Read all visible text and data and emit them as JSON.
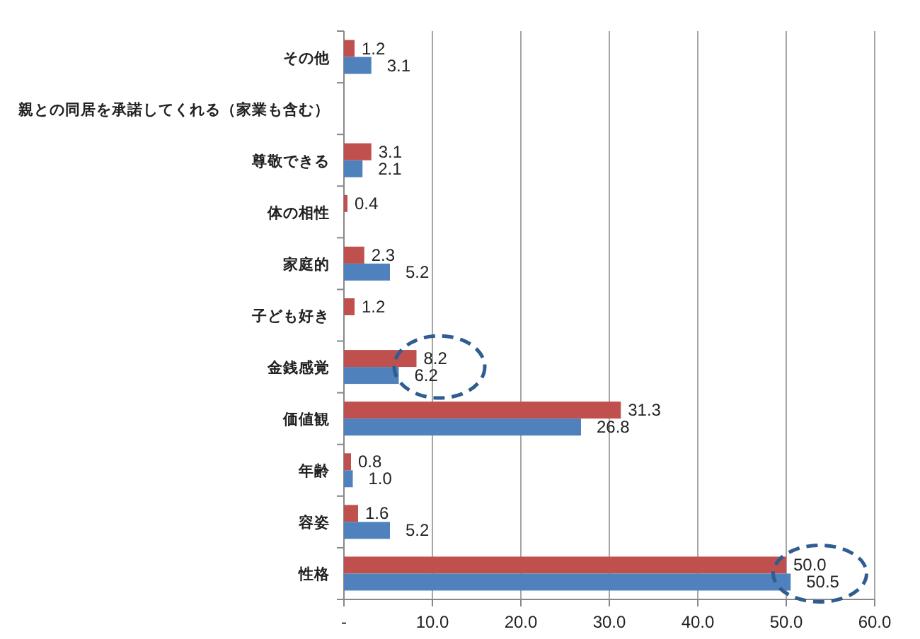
{
  "chart_data": {
    "type": "bar",
    "orientation": "horizontal",
    "categories": [
      "その他",
      "親との同居を承諾してくれる（家業も含む）",
      "尊敬できる",
      "体の相性",
      "家庭的",
      "子ども好き",
      "金銭感覚",
      "価値観",
      "年齢",
      "容姿",
      "性格"
    ],
    "series": [
      {
        "color": "#c0504d",
        "values": [
          1.2,
          null,
          3.1,
          0.4,
          2.3,
          1.2,
          8.2,
          31.3,
          0.8,
          1.6,
          50.0
        ],
        "value_labels": [
          "1.2",
          null,
          "3.1",
          "0.4",
          "2.3",
          "1.2",
          "8.2",
          "31.3",
          "0.8",
          "1.6",
          "50.0"
        ]
      },
      {
        "color": "#4f81bd",
        "values": [
          3.1,
          null,
          2.1,
          null,
          5.2,
          null,
          6.2,
          26.8,
          1.0,
          5.2,
          50.5
        ],
        "value_labels": [
          "3.1",
          null,
          "2.1",
          null,
          "5.2",
          null,
          "6.2",
          "26.8",
          "1.0",
          "5.2",
          "50.5"
        ]
      }
    ],
    "xlim": [
      0,
      60
    ],
    "xticks": [
      {
        "value": 0,
        "label": "-"
      },
      {
        "value": 10,
        "label": "10.0"
      },
      {
        "value": 20,
        "label": "20.0"
      },
      {
        "value": 30,
        "label": "30.0"
      },
      {
        "value": 40,
        "label": "40.0"
      },
      {
        "value": 50,
        "label": "50.0"
      },
      {
        "value": 60,
        "label": "60.0"
      }
    ],
    "grid": "x"
  }
}
